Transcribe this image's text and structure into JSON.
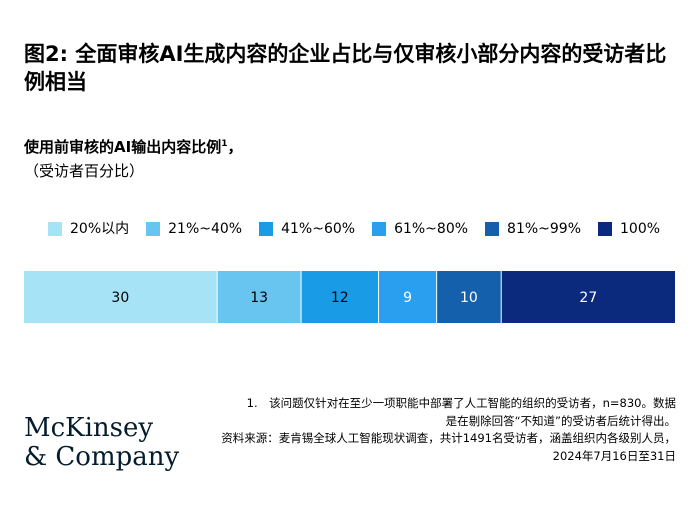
{
  "title": "图2: 全面审核AI生成内容的企业占比与仅审核小部分内容的受访者比例相当",
  "subtitle": "使用前审核的AI输出内容比例",
  "subtitle_note": "1",
  "subtitle_suffix": "，",
  "unit": "（受访者百分比）",
  "legend": [
    {
      "label": "20%以内",
      "color": "#a6e3f7"
    },
    {
      "label": "21%~40%",
      "color": "#68c5f0"
    },
    {
      "label": "41%~60%",
      "color": "#1a9be6"
    },
    {
      "label": "61%~80%",
      "color": "#2a9ff0"
    },
    {
      "label": "81%~99%",
      "color": "#1460ad"
    },
    {
      "label": "100%",
      "color": "#0b2a7d"
    }
  ],
  "chart_data": {
    "type": "bar",
    "orientation": "horizontal-stacked",
    "categories": [
      "20%以内",
      "21%~40%",
      "41%~60%",
      "61%~80%",
      "81%~99%",
      "100%"
    ],
    "values": [
      30,
      13,
      12,
      9,
      10,
      27
    ],
    "colors": [
      "#a6e3f7",
      "#68c5f0",
      "#1a9be6",
      "#2a9ff0",
      "#1460ad",
      "#0b2a7d"
    ],
    "text_colors": [
      "#000000",
      "#000000",
      "#000000",
      "#ffffff",
      "#ffffff",
      "#ffffff"
    ],
    "legend_position": "top",
    "grid": false
  },
  "footnote": "1.　该问题仅针对在至少一项职能中部署了人工智能的组织的受访者，n=830。数据是在剔除回答“不知道”的受访者后统计得出。",
  "source": "资料来源：麦肯锡全球人工智能现状调查，共计1491名受访者，涵盖组织内各级别人员，2024年7月16日至31日",
  "logo": {
    "line1": "McKinsey",
    "line2": "& Company"
  }
}
